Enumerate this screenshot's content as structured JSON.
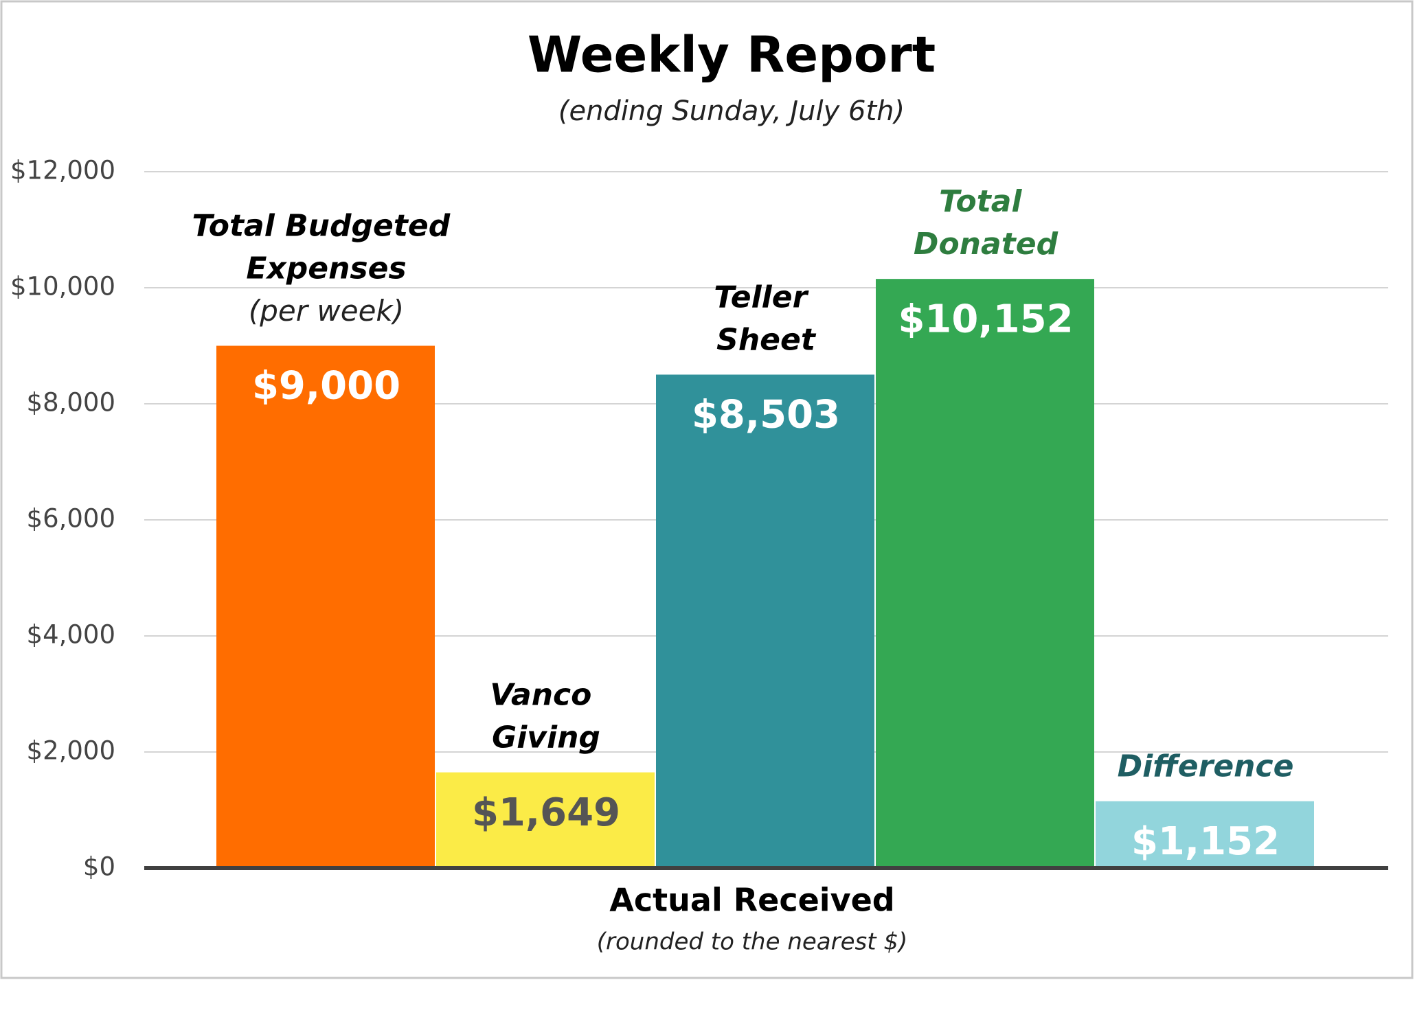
{
  "chart_data": {
    "type": "bar",
    "title": "Weekly Report",
    "subtitle": "(ending Sunday, July 6th)",
    "x_label": "Actual Received",
    "x_label_note": "(rounded to the nearest $)",
    "categories": [
      "Total Budgeted Expenses",
      "Vanco Giving",
      "Teller Sheet",
      "Total Donated",
      "Difference"
    ],
    "category_note": "(per week)",
    "values": [
      9000,
      1649,
      8503,
      10152,
      1152
    ],
    "value_labels": [
      "$9,000",
      "$1,649",
      "$8,503",
      "$10,152",
      "$1,152"
    ],
    "colors": [
      "#ff6d00",
      "#fbeb47",
      "#30919a",
      "#34a853",
      "#92d5dc"
    ],
    "category_label_colors": [
      "#000000",
      "#000000",
      "#000000",
      "#2e7d3f",
      "#1f5e63"
    ],
    "value_label_colors": [
      "#ffffff",
      "#555555",
      "#ffffff",
      "#ffffff",
      "#ffffff"
    ],
    "ylim": [
      0,
      12000
    ],
    "yticks": [
      {
        "value": 0,
        "label": "$0"
      },
      {
        "value": 2000,
        "label": "$2,000"
      },
      {
        "value": 4000,
        "label": "$4,000"
      },
      {
        "value": 6000,
        "label": "$6,000"
      },
      {
        "value": 8000,
        "label": "$8,000"
      },
      {
        "value": 10000,
        "label": "$10,000"
      },
      {
        "value": 12000,
        "label": "$12,000"
      }
    ],
    "grid": true
  }
}
